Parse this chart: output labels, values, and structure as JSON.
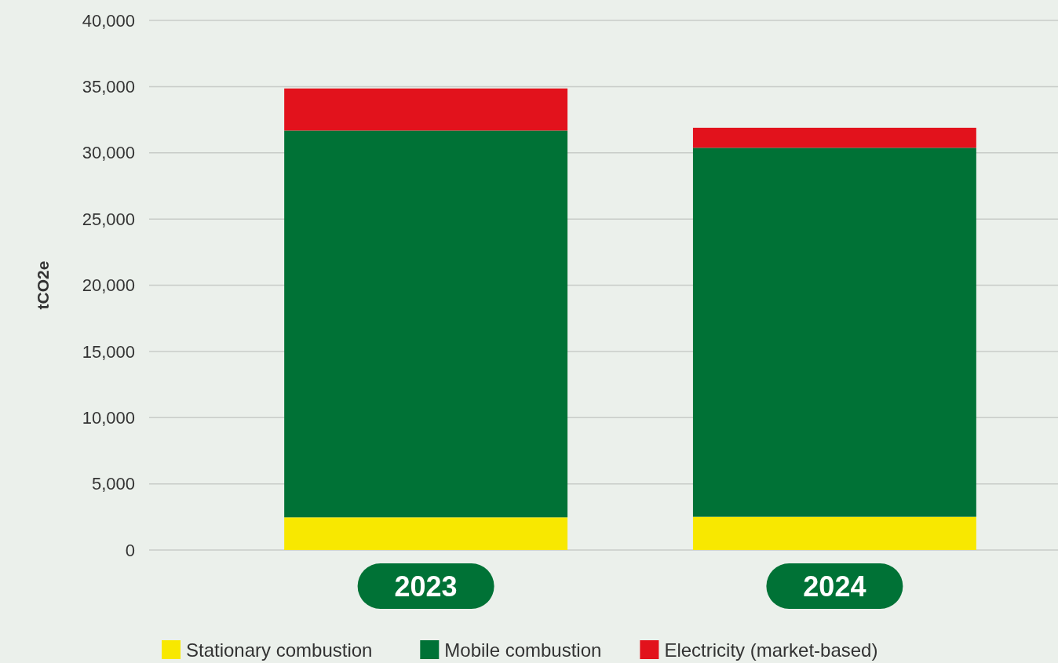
{
  "chart_data": {
    "type": "bar",
    "ylabel": "tCO2e",
    "categories": [
      "2023",
      "2024"
    ],
    "stacked": true,
    "series": [
      {
        "name": "Stationary combustion",
        "color": "#f8e800",
        "values": [
          2470,
          2510
        ]
      },
      {
        "name": "Mobile combustion",
        "color": "#007236",
        "values": [
          29210,
          27870
        ]
      },
      {
        "name": "Electricity (market-based)",
        "color": "#e2121c",
        "values": [
          3180,
          1510
        ]
      }
    ],
    "ylim": [
      0,
      40000
    ],
    "yticks": [
      {
        "value": 0,
        "label": "0"
      },
      {
        "value": 5000,
        "label": "5,000"
      },
      {
        "value": 10000,
        "label": "10,000"
      },
      {
        "value": 15000,
        "label": "15,000"
      },
      {
        "value": 20000,
        "label": "20,000"
      },
      {
        "value": 25000,
        "label": "25,000"
      },
      {
        "value": 30000,
        "label": "30,000"
      },
      {
        "value": 35000,
        "label": "35,000"
      },
      {
        "value": 40000,
        "label": "40,000"
      }
    ],
    "grid": "y",
    "legend": "bottom"
  }
}
